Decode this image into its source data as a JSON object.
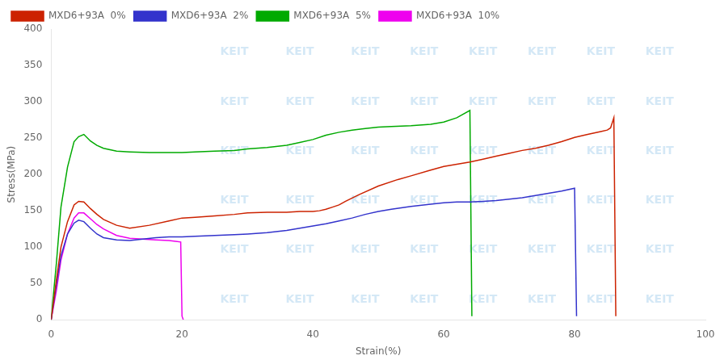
{
  "chart_data": {
    "type": "line",
    "xlabel": "Strain(%)",
    "ylabel": "Stress(MPa)",
    "xlim": [
      0,
      100
    ],
    "ylim": [
      0,
      400
    ],
    "xticks": [
      0,
      20,
      40,
      60,
      80,
      100
    ],
    "yticks": [
      0,
      50,
      100,
      150,
      200,
      250,
      300,
      350,
      400
    ],
    "grid": false,
    "legend": "upper left",
    "watermark": "KEIT",
    "series": [
      {
        "name": "MXD6+93A  0%",
        "color": "#cc2200",
        "x": [
          0,
          0.3,
          0.8,
          1.5,
          2.5,
          3.5,
          4.2,
          5.0,
          6.0,
          7.0,
          8.0,
          10.0,
          12.0,
          15.0,
          18.0,
          20.0,
          22.0,
          25.0,
          28.0,
          30.0,
          33.0,
          36.0,
          38.0,
          40.0,
          41.0,
          42.0,
          43.0,
          44.0,
          45.0,
          47.0,
          50.0,
          53.0,
          55.0,
          58.0,
          60.0,
          62.0,
          64.0,
          66.0,
          68.0,
          70.0,
          72.0,
          74.0,
          76.0,
          78.0,
          80.0,
          82.0,
          84.0,
          85.0,
          85.5,
          86.0,
          86.3
        ],
        "values": [
          0,
          20,
          55,
          100,
          135,
          158,
          163,
          162,
          153,
          145,
          138,
          130,
          126,
          130,
          136,
          140,
          141,
          143,
          145,
          147,
          148,
          148,
          149,
          149,
          150,
          152,
          155,
          158,
          163,
          172,
          184,
          193,
          198,
          206,
          211,
          214,
          217,
          221,
          225,
          229,
          233,
          236,
          240,
          245,
          251,
          255,
          259,
          261,
          264,
          278,
          5
        ]
      },
      {
        "name": "MXD6+93A  2%",
        "color": "#3333cc",
        "x": [
          0,
          0.3,
          0.8,
          1.5,
          2.5,
          3.5,
          4.2,
          5.0,
          6.0,
          7.0,
          8.0,
          10.0,
          12.0,
          14.0,
          16.0,
          18.0,
          20.0,
          22.0,
          25.0,
          28.0,
          30.0,
          33.0,
          36.0,
          38.0,
          40.0,
          42.0,
          44.0,
          46.0,
          48.0,
          50.0,
          52.0,
          55.0,
          58.0,
          60.0,
          62.0,
          64.0,
          66.0,
          68.0,
          70.0,
          72.0,
          74.0,
          76.0,
          78.0,
          80.0,
          80.3
        ],
        "values": [
          0,
          18,
          48,
          88,
          118,
          133,
          137,
          135,
          126,
          118,
          113,
          110,
          109,
          111,
          113,
          114,
          114,
          115,
          116,
          117,
          118,
          120,
          123,
          126,
          129,
          132,
          136,
          140,
          145,
          149,
          152,
          156,
          159,
          161,
          162,
          162,
          163,
          164,
          166,
          168,
          171,
          174,
          177,
          181,
          5
        ]
      },
      {
        "name": "MXD6+93A  5%",
        "color": "#00aa00",
        "x": [
          0,
          0.3,
          0.8,
          1.5,
          2.5,
          3.5,
          4.2,
          5.0,
          6.0,
          7.0,
          8.0,
          10.0,
          12.0,
          15.0,
          18.0,
          20.0,
          22.0,
          25.0,
          28.0,
          30.0,
          33.0,
          36.0,
          38.0,
          40.0,
          42.0,
          44.0,
          46.0,
          48.0,
          50.0,
          52.0,
          55.0,
          58.0,
          60.0,
          62.0,
          64.0,
          64.3
        ],
        "values": [
          0,
          30,
          78,
          155,
          210,
          245,
          252,
          255,
          246,
          240,
          236,
          232,
          231,
          230,
          230,
          230,
          231,
          232,
          233,
          235,
          237,
          240,
          244,
          248,
          254,
          258,
          261,
          263,
          265,
          266,
          267,
          269,
          272,
          278,
          288,
          5
        ]
      },
      {
        "name": "MXD6+93A  10%",
        "color": "#ee00ee",
        "x": [
          0,
          0.3,
          0.8,
          1.5,
          2.5,
          3.5,
          4.2,
          5.0,
          6.0,
          7.0,
          8.0,
          10.0,
          12.0,
          14.0,
          16.0,
          18.0,
          19.0,
          19.8,
          20.0,
          20.2
        ],
        "values": [
          0,
          15,
          40,
          82,
          118,
          140,
          147,
          147,
          139,
          131,
          125,
          116,
          112,
          111,
          110,
          109,
          108,
          107,
          5,
          0
        ]
      }
    ]
  }
}
